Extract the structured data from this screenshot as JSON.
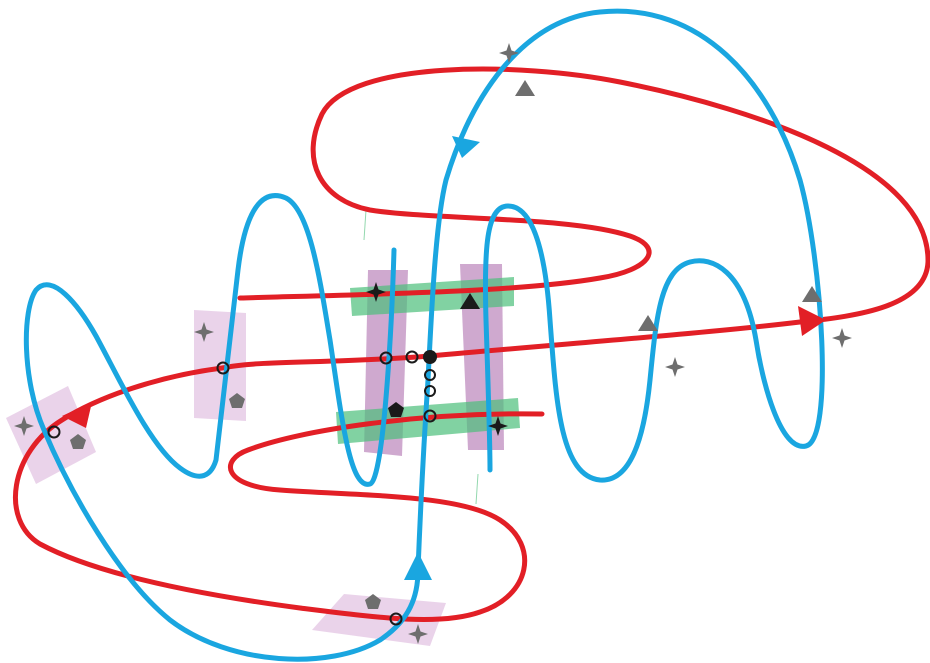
{
  "diagram": {
    "colors": {
      "red_curve": "#e21f26",
      "blue_curve": "#1aa6e0",
      "purple_band": "#c79ac7",
      "light_purple_band": "#e6cbe6",
      "green_band": "#4cbf7a",
      "marker_grey": "#6e6e6e",
      "marker_dark": "#1a1a1a",
      "circle_stroke": "#1a1a1a"
    },
    "icons": {
      "star": "four-point-star-icon",
      "triangle": "triangle-icon",
      "pentagon": "pentagon-icon",
      "open_circle": "open-circle-icon",
      "filled_circle": "filled-circle-icon",
      "arrow": "arrowhead-icon"
    },
    "curves": [
      {
        "name": "red-curve",
        "color_key": "red_curve"
      },
      {
        "name": "blue-curve",
        "color_key": "blue_curve"
      }
    ]
  }
}
